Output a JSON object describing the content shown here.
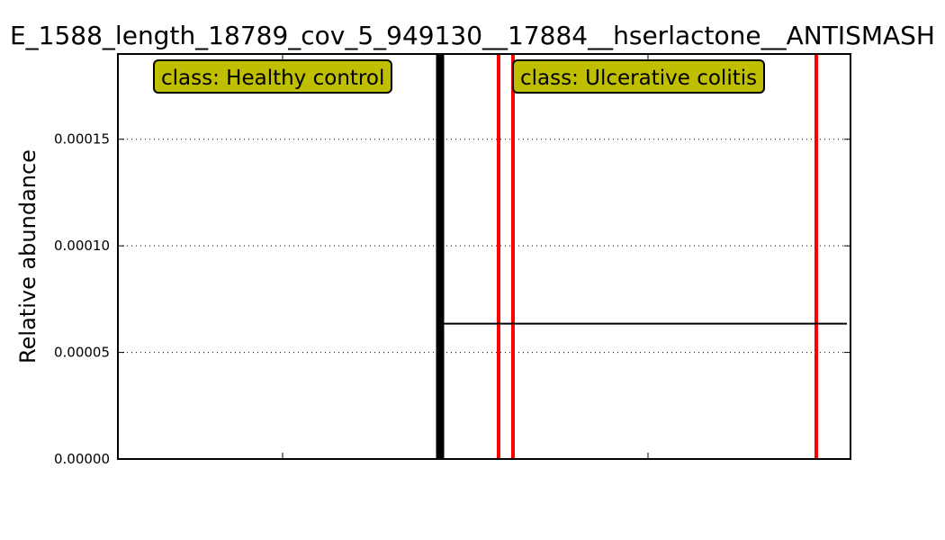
{
  "chart_data": {
    "type": "bar",
    "title": "E_1588_length_18789_cov_5_949130__17884__hserlactone__ANTISMASH",
    "xlabel": "",
    "ylabel": "Relative abundance",
    "ylim": [
      0,
      0.00019
    ],
    "yticks": [
      "0.00000",
      "0.00005",
      "0.00010",
      "0.00015"
    ],
    "grid": "y dotted",
    "classes": [
      {
        "label": "class: Healthy control",
        "color": "#bfbf00"
      },
      {
        "label": "class: Ulcerative colitis",
        "color": "#bfbf00"
      }
    ],
    "class_separator_color": "#000000",
    "positive_sample_color": "#ff0000",
    "ulcerative_colitis_mean": 6.35e-05
  }
}
